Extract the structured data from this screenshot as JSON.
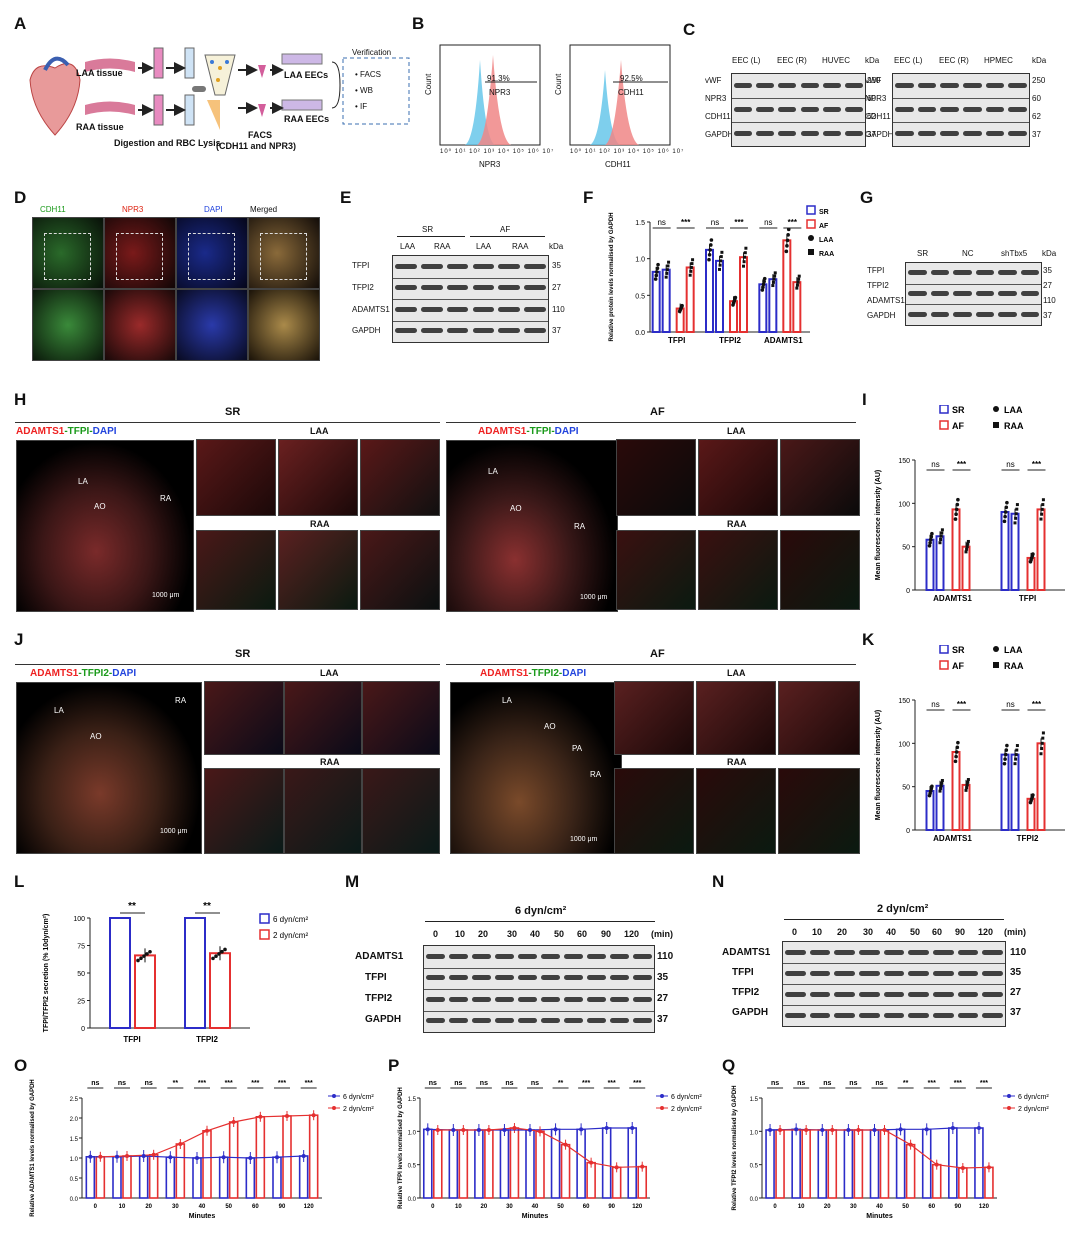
{
  "letters": {
    "A": "A",
    "B": "B",
    "C": "C",
    "D": "D",
    "E": "E",
    "F": "F",
    "G": "G",
    "H": "H",
    "I": "I",
    "J": "J",
    "K": "K",
    "L": "L",
    "M": "M",
    "N": "N",
    "O": "O",
    "P": "P",
    "Q": "Q"
  },
  "panelA": {
    "laa": "LAA tissue",
    "raa": "RAA tissue",
    "digestion": "Digestion and RBC Lysis",
    "facs": "FACS",
    "facs_sub": "(CDH11 and NPR3)",
    "laa_eecs": "LAA EECs",
    "raa_eecs": "RAA EECs",
    "verification": "Verification",
    "ver_items": [
      "FACS",
      "WB",
      "IF"
    ]
  },
  "panelB": {
    "left": {
      "pct": "91.3%",
      "marker": "NPR3",
      "xlabel": "NPR3",
      "ylabel": "Count"
    },
    "right": {
      "pct": "92.5%",
      "marker": "CDH11",
      "xlabel": "CDH11",
      "ylabel": "Count"
    },
    "ticks": [
      "10⁰",
      "10¹",
      "10²",
      "10³",
      "10⁴",
      "10⁵",
      "10⁶",
      "10⁷"
    ]
  },
  "panelC": {
    "left_groups": [
      "EEC (L)",
      "EEC (R)",
      "HUVEC"
    ],
    "right_groups": [
      "EEC (L)",
      "EEC (R)",
      "HPMEC"
    ],
    "rows": [
      "vWF",
      "NPR3",
      "CDH11",
      "GAPDH"
    ],
    "kda": [
      "250",
      "60",
      "62",
      "37"
    ],
    "kda_label": "kDa"
  },
  "panelD": {
    "channels": [
      "CDH11",
      "NPR3",
      "DAPI",
      "Merged"
    ]
  },
  "panelE": {
    "groups": [
      "SR",
      "AF"
    ],
    "lanes": [
      "LAA",
      "RAA",
      "LAA",
      "RAA"
    ],
    "rows": [
      "TFPI",
      "TFPI2",
      "ADAMTS1",
      "GAPDH"
    ],
    "kda": [
      "35",
      "27",
      "110",
      "37"
    ],
    "kda_label": "kDa"
  },
  "panelG": {
    "groups": [
      "SR",
      "NC",
      "shTbx5"
    ],
    "rows": [
      "TFPI",
      "TFPI2",
      "ADAMTS1",
      "GAPDH"
    ],
    "kda": [
      "35",
      "27",
      "110",
      "37"
    ],
    "kda_label": "kDa"
  },
  "panelH": {
    "sr": "SR",
    "af": "AF",
    "stain_a": "ADAMTS1",
    "stain_b": "-TFPI-",
    "stain_c": "DAPI",
    "laa": "LAA",
    "raa": "RAA",
    "scale": "1000 μm",
    "regions": [
      "LA",
      "AO",
      "RA"
    ]
  },
  "panelJ": {
    "sr": "SR",
    "af": "AF",
    "stain_a": "ADAMTS1",
    "stain_b": "-TFPI2-",
    "stain_c": "DAPI",
    "laa": "LAA",
    "raa": "RAA",
    "scale": "1000 μm",
    "regions_sr": [
      "LA",
      "AO",
      "RA"
    ],
    "regions_af": [
      "LA",
      "AO",
      "PA",
      "RA"
    ]
  },
  "panelM": {
    "title": "6 dyn/cm²",
    "times": [
      "0",
      "10",
      "20",
      "30",
      "40",
      "50",
      "60",
      "90",
      "120"
    ],
    "unit": "(min)",
    "rows": [
      "ADAMTS1",
      "TFPI",
      "TFPI2",
      "GAPDH"
    ],
    "kda": [
      "110",
      "35",
      "27",
      "37"
    ]
  },
  "panelN": {
    "title": "2 dyn/cm²",
    "times": [
      "0",
      "10",
      "20",
      "30",
      "40",
      "50",
      "60",
      "90",
      "120"
    ],
    "unit": "(min)",
    "rows": [
      "ADAMTS1",
      "TFPI",
      "TFPI2",
      "GAPDH"
    ],
    "kda": [
      "110",
      "35",
      "27",
      "37"
    ]
  },
  "colors": {
    "blue": "#2c2cc8",
    "red": "#e53030",
    "sr": "#2c2cc8",
    "af": "#e53030"
  },
  "chart_data": [
    {
      "id": "F",
      "type": "bar",
      "ylabel": "Relative protein levels normalised by GAPDH",
      "ylim": [
        0,
        1.5
      ],
      "yticks": [
        "0.0",
        "0.5",
        "1.0",
        "1.5"
      ],
      "categories": [
        "TFPI",
        "TFPI2",
        "ADAMTS1"
      ],
      "series": [
        {
          "name": "SR LAA",
          "values": [
            0.82,
            1.12,
            0.65
          ]
        },
        {
          "name": "SR RAA",
          "values": [
            0.85,
            0.97,
            0.72
          ]
        },
        {
          "name": "AF LAA",
          "values": [
            0.32,
            0.42,
            1.25
          ]
        },
        {
          "name": "AF RAA",
          "values": [
            0.88,
            1.02,
            0.68
          ]
        }
      ],
      "legend": [
        "SR",
        "AF",
        "LAA",
        "RAA"
      ],
      "sig": [
        "ns",
        "***",
        "ns",
        "***",
        "ns",
        "***"
      ]
    },
    {
      "id": "I",
      "type": "bar",
      "ylabel": "Mean fluorescence intensity (AU)",
      "ylim": [
        0,
        150
      ],
      "yticks": [
        "0",
        "50",
        "100",
        "150"
      ],
      "categories": [
        "ADAMTS1",
        "TFPI"
      ],
      "series": [
        {
          "name": "SR LAA",
          "values": [
            58,
            90
          ]
        },
        {
          "name": "SR RAA",
          "values": [
            62,
            88
          ]
        },
        {
          "name": "AF LAA",
          "values": [
            93,
            37
          ]
        },
        {
          "name": "AF RAA",
          "values": [
            50,
            93
          ]
        }
      ],
      "legend": [
        "SR",
        "AF",
        "LAA",
        "RAA"
      ],
      "sig": [
        "ns",
        "***",
        "ns",
        "***"
      ]
    },
    {
      "id": "K",
      "type": "bar",
      "ylabel": "Mean fluorescence intensity (AU)",
      "ylim": [
        0,
        150
      ],
      "yticks": [
        "0",
        "50",
        "100",
        "150"
      ],
      "categories": [
        "ADAMTS1",
        "TFPI2"
      ],
      "series": [
        {
          "name": "SR LAA",
          "values": [
            45,
            87
          ]
        },
        {
          "name": "SR RAA",
          "values": [
            51,
            87
          ]
        },
        {
          "name": "AF LAA",
          "values": [
            90,
            36
          ]
        },
        {
          "name": "AF RAA",
          "values": [
            52,
            100
          ]
        }
      ],
      "legend": [
        "SR",
        "AF",
        "LAA",
        "RAA"
      ],
      "sig": [
        "ns",
        "***",
        "ns",
        "***"
      ]
    },
    {
      "id": "L",
      "type": "bar",
      "ylabel": "TFPI/TFPI2 secretion (% 10dyn/cm²)",
      "ylim": [
        0,
        100
      ],
      "yticks": [
        "0",
        "25",
        "50",
        "75",
        "100"
      ],
      "categories": [
        "TFPI",
        "TFPI2"
      ],
      "series": [
        {
          "name": "6 dyn/cm²",
          "values": [
            100,
            100
          ]
        },
        {
          "name": "2 dyn/cm²",
          "values": [
            66,
            68
          ]
        }
      ],
      "sig": [
        "**",
        "**"
      ]
    },
    {
      "id": "O",
      "type": "bar+line",
      "ylabel": "Relative ADAMTS1 levels normalised by GAPDH",
      "xlabel": "Minutes",
      "ylim": [
        0,
        2.5
      ],
      "yticks": [
        "0.0",
        "0.5",
        "1.0",
        "1.5",
        "2.0",
        "2.5"
      ],
      "categories": [
        "0",
        "10",
        "20",
        "30",
        "40",
        "50",
        "60",
        "90",
        "120"
      ],
      "series": [
        {
          "name": "6 dyn/cm²",
          "values": [
            1.03,
            1.03,
            1.05,
            1.02,
            1.0,
            1.02,
            1.0,
            1.02,
            1.05
          ]
        },
        {
          "name": "2 dyn/cm²",
          "values": [
            1.03,
            1.05,
            1.08,
            1.35,
            1.68,
            1.9,
            2.03,
            2.05,
            2.07
          ]
        }
      ],
      "sig": [
        "ns",
        "ns",
        "ns",
        "**",
        "***",
        "***",
        "***",
        "***",
        "***"
      ]
    },
    {
      "id": "P",
      "type": "bar+line",
      "ylabel": "Relative TFPI levels normalised by GAPDH",
      "xlabel": "Minutes",
      "ylim": [
        0,
        1.5
      ],
      "yticks": [
        "0.0",
        "0.5",
        "1.0",
        "1.5"
      ],
      "categories": [
        "0",
        "10",
        "20",
        "30",
        "40",
        "50",
        "60",
        "90",
        "120"
      ],
      "series": [
        {
          "name": "6 dyn/cm²",
          "values": [
            1.03,
            1.02,
            1.02,
            1.02,
            1.02,
            1.03,
            1.03,
            1.05,
            1.05
          ]
        },
        {
          "name": "2 dyn/cm²",
          "values": [
            1.02,
            1.02,
            1.02,
            1.05,
            1.0,
            0.8,
            0.53,
            0.46,
            0.47
          ]
        }
      ],
      "sig": [
        "ns",
        "ns",
        "ns",
        "ns",
        "ns",
        "**",
        "***",
        "***",
        "***"
      ]
    },
    {
      "id": "Q",
      "type": "bar+line",
      "ylabel": "Relative TFPI2 levels normalised by GAPDH",
      "xlabel": "Minutes",
      "ylim": [
        0,
        1.5
      ],
      "yticks": [
        "0.0",
        "0.5",
        "1.0",
        "1.5"
      ],
      "categories": [
        "0",
        "10",
        "20",
        "30",
        "40",
        "50",
        "60",
        "90",
        "120"
      ],
      "series": [
        {
          "name": "6 dyn/cm²",
          "values": [
            1.02,
            1.03,
            1.02,
            1.02,
            1.02,
            1.03,
            1.03,
            1.05,
            1.05
          ]
        },
        {
          "name": "2 dyn/cm²",
          "values": [
            1.02,
            1.02,
            1.02,
            1.02,
            1.02,
            0.8,
            0.5,
            0.45,
            0.46
          ]
        }
      ],
      "sig": [
        "ns",
        "ns",
        "ns",
        "ns",
        "ns",
        "**",
        "***",
        "***",
        "***"
      ]
    }
  ]
}
